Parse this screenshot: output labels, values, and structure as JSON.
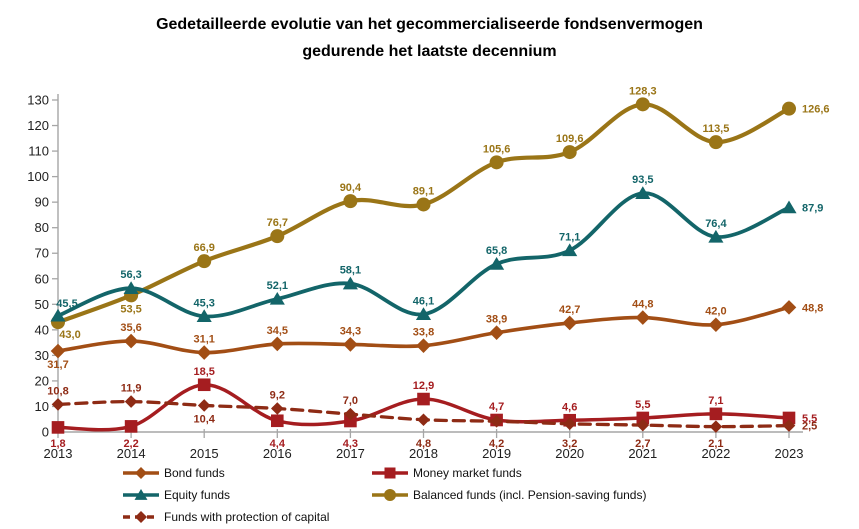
{
  "title": {
    "line1": "Gedetailleerde evolutie van het gecommercialiseerde fondsenvermogen",
    "line2": "gedurende het laatste decennium"
  },
  "colors": {
    "background": "#FFFFFF",
    "title_text": "#000000",
    "axis_line": "#A6A6A6",
    "axis_text": "#1F1F1F"
  },
  "chart_data": {
    "type": "line",
    "title": "Gedetailleerde evolutie van het gecommercialiseerde fondsenvermogen gedurende het laatste decennium",
    "x": [
      2013,
      2014,
      2015,
      2016,
      2017,
      2018,
      2019,
      2020,
      2021,
      2022,
      2023
    ],
    "xlabel": "",
    "ylabel": "",
    "ylim": [
      0,
      130
    ],
    "ytick_step": 10,
    "grid": false,
    "legend_position": "bottom",
    "series": [
      {
        "name": "Bond funds",
        "color": "#A24E15",
        "marker": "diamond",
        "line": "solid",
        "values": [
          31.7,
          35.6,
          31.1,
          34.5,
          34.3,
          33.8,
          38.9,
          42.7,
          44.8,
          42.0,
          48.8
        ],
        "labels": [
          "31,7",
          "35,6",
          "31,1",
          "34,5",
          "34,3",
          "33,8",
          "38,9",
          "42,7",
          "44,8",
          "42,0",
          "48,8"
        ],
        "label_pos": [
          "b",
          "a",
          "a",
          "a",
          "a",
          "a",
          "a",
          "a",
          "a",
          "a",
          "r"
        ]
      },
      {
        "name": "Money market funds",
        "color": "#A51D20",
        "marker": "square",
        "line": "solid",
        "values": [
          1.8,
          2.2,
          18.5,
          4.4,
          4.3,
          12.9,
          4.7,
          4.6,
          5.5,
          7.1,
          5.5
        ],
        "labels": [
          "1,8",
          "2,2",
          "18,5",
          "4,4",
          "4,3",
          "12,9",
          "4,7",
          "4,6",
          "5,5",
          "7,1",
          "5,5"
        ],
        "label_pos": [
          "b",
          "b",
          "a",
          "b",
          "b",
          "a",
          "a",
          "a",
          "a",
          "a",
          "r"
        ]
      },
      {
        "name": "Equity funds",
        "color": "#136569",
        "marker": "triangle",
        "line": "solid",
        "values": [
          45.5,
          56.3,
          45.3,
          52.1,
          58.1,
          46.1,
          65.8,
          71.1,
          93.5,
          76.4,
          87.9
        ],
        "labels": [
          "45,5",
          "56,3",
          "45,3",
          "52,1",
          "58,1",
          "46,1",
          "65,8",
          "71,1",
          "93,5",
          "76,4",
          "87,9"
        ],
        "label_pos": [
          "ar",
          "a",
          "a",
          "a",
          "a",
          "a",
          "a",
          "a",
          "a",
          "a",
          "r"
        ]
      },
      {
        "name": "Balanced funds (incl. Pension-saving funds)",
        "color": "#9A7517",
        "marker": "circle",
        "line": "solid",
        "values": [
          43.0,
          53.5,
          66.9,
          76.7,
          90.4,
          89.1,
          105.6,
          109.6,
          128.3,
          113.5,
          126.6
        ],
        "labels": [
          "43,0",
          "53,5",
          "66,9",
          "76,7",
          "90,4",
          "89,1",
          "105,6",
          "109,6",
          "128,3",
          "113,5",
          "126,6"
        ],
        "label_pos": [
          "br",
          "b",
          "a",
          "a",
          "a",
          "a",
          "a",
          "a",
          "a",
          "a",
          "r"
        ]
      },
      {
        "name": "Funds with protection of capital",
        "color": "#8E2B15",
        "marker": "diamond",
        "line": "dashed",
        "values": [
          10.8,
          11.9,
          10.4,
          9.2,
          7.0,
          4.8,
          4.2,
          3.2,
          2.7,
          2.1,
          2.5
        ],
        "labels": [
          "10,8",
          "11,9",
          "10,4",
          "9,2",
          "7,0",
          "4,8",
          "4,2",
          "3,2",
          "2,7",
          "2,1",
          "2,5"
        ],
        "label_pos": [
          "a",
          "a",
          "b",
          "a",
          "a",
          "b",
          "b",
          "b",
          "b",
          "b",
          "r"
        ]
      }
    ],
    "legend_columns": [
      [
        0,
        2,
        4
      ],
      [
        1,
        3
      ]
    ],
    "draw_order": [
      3,
      2,
      0,
      1,
      4
    ]
  }
}
